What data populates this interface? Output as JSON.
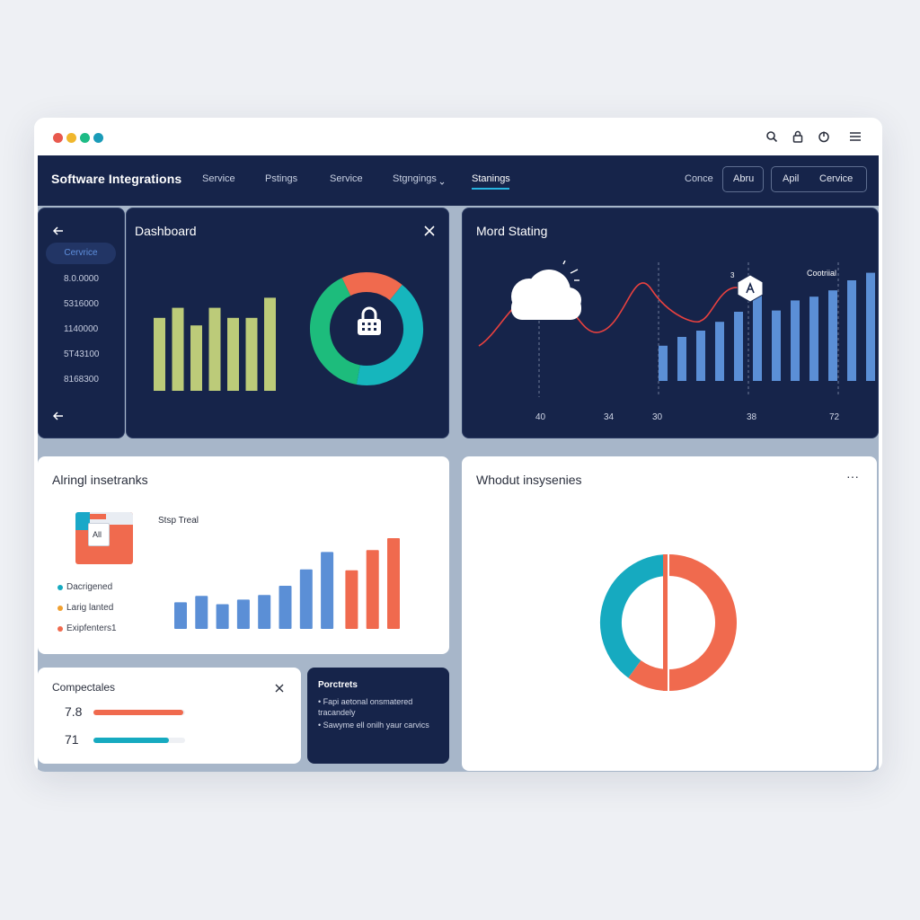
{
  "titlebar": {
    "dots": [
      "#e8594d",
      "#f0b72d",
      "#1dbb85",
      "#1a9bb8"
    ],
    "icons": [
      "search-icon",
      "lock-icon",
      "power-icon",
      "menu-icon"
    ]
  },
  "nav": {
    "title": "Software Integrations",
    "items": [
      "Service",
      "Pstings",
      "Service",
      "Stgngings",
      "Stanings"
    ],
    "active_index": 4,
    "right_label": "Conce",
    "buttons": [
      "Abru",
      "Apil",
      "Cervice"
    ]
  },
  "sidebar": {
    "active_item": "Cervrice",
    "items": [
      "8.0.0000",
      "5316000",
      "1140000",
      "5T43100",
      "8168300"
    ]
  },
  "dashboard": {
    "title": "Dashboard",
    "bars": [
      0.58,
      0.66,
      0.52,
      0.66,
      0.58,
      0.58,
      0.74
    ],
    "donut": [
      {
        "value": 0.18,
        "color": "#f06a4e"
      },
      {
        "value": 0.42,
        "color": "#16b6bd"
      },
      {
        "value": 0.4,
        "color": "#1dbc7c"
      }
    ]
  },
  "mord": {
    "title": "Mord Stating",
    "marker_label": "Cootriial",
    "x_labels": [
      "40",
      "34",
      "30",
      "38",
      "72"
    ],
    "bars": [
      0.28,
      0.35,
      0.4,
      0.47,
      0.55,
      0.68,
      0.56,
      0.64,
      0.67,
      0.72,
      0.8,
      0.86
    ]
  },
  "alring": {
    "title": "Alringl insetranks",
    "card_label": "Stsp Treal",
    "mini_label": "All",
    "legend": [
      {
        "label": "Dacrigened",
        "color": "#16aac0"
      },
      {
        "label": "Larig lanted",
        "color": "#f0a030"
      },
      {
        "label": "Exipfenters1",
        "color": "#f06a4e"
      }
    ],
    "bars": [
      {
        "value": 0.29,
        "color": "#5b8fd6"
      },
      {
        "value": 0.36,
        "color": "#5b8fd6"
      },
      {
        "value": 0.27,
        "color": "#5b8fd6"
      },
      {
        "value": 0.32,
        "color": "#5b8fd6"
      },
      {
        "value": 0.37,
        "color": "#5b8fd6"
      },
      {
        "value": 0.47,
        "color": "#5b8fd6"
      },
      {
        "value": 0.65,
        "color": "#5b8fd6"
      },
      {
        "value": 0.84,
        "color": "#5b8fd6"
      },
      {
        "value": 0.64,
        "color": "#f06a4e"
      },
      {
        "value": 0.86,
        "color": "#f06a4e"
      },
      {
        "value": 0.99,
        "color": "#f06a4e"
      }
    ]
  },
  "compect": {
    "title": "Compectales",
    "metrics": [
      {
        "value": "7.8",
        "fraction": 0.98,
        "color": "#f06a4e"
      },
      {
        "value": "71",
        "fraction": 0.82,
        "color": "#16aac0"
      }
    ]
  },
  "notes": {
    "title": "Porctrets",
    "items": [
      "Fapi aetonal onsmatered tracandely",
      "Sawyme ell onilh yaur carvics"
    ]
  },
  "whodut": {
    "title": "Whodut insysenies",
    "more": "···",
    "donut": [
      {
        "value": 0.6,
        "color": "#f06a4e"
      },
      {
        "value": 0.4,
        "color": "#16aac0"
      }
    ]
  }
}
